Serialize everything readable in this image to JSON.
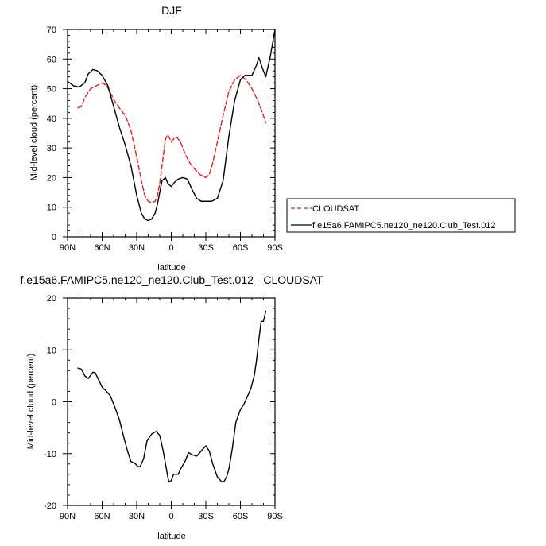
{
  "chart_data": [
    {
      "type": "line",
      "title": "DJF",
      "xlabel": "latitude",
      "ylabel": "Mid-level cloud (percent)",
      "xlim": [
        -90,
        90
      ],
      "ylim": [
        0,
        70
      ],
      "xticks": [
        -90,
        -60,
        -30,
        0,
        30,
        60,
        90
      ],
      "xtick_labels": [
        "90N",
        "60N",
        "30N",
        "0",
        "30S",
        "60S",
        "90S"
      ],
      "yticks": [
        0,
        10,
        20,
        30,
        40,
        50,
        60,
        70
      ],
      "ytick_labels": [
        "0",
        "10",
        "20",
        "30",
        "40",
        "50",
        "60",
        "70"
      ],
      "legend": {
        "placement": "right",
        "entries": [
          "CLOUDSAT",
          "f.e15a6.FAMIPC5.ne120_ne120.Club_Test.012"
        ]
      },
      "series": [
        {
          "name": "CLOUDSAT",
          "style": "dashed",
          "color": "#e02020",
          "x": [
            -81,
            -78,
            -75,
            -70,
            -65,
            -60,
            -56,
            -52,
            -48,
            -44,
            -40,
            -35,
            -30,
            -26,
            -23,
            -20,
            -17,
            -14,
            -12,
            -10,
            -8,
            -5,
            -3,
            0,
            3,
            5,
            8,
            12,
            16,
            20,
            25,
            30,
            33,
            36,
            40,
            45,
            50,
            55,
            60,
            65,
            70,
            75,
            79,
            82
          ],
          "y": [
            43.5,
            44,
            47,
            50,
            51,
            52,
            51,
            48,
            45,
            43,
            41,
            36,
            27,
            19,
            14,
            12,
            11.5,
            12,
            14,
            18,
            24,
            33,
            34.5,
            32,
            33.5,
            33.5,
            32,
            28,
            25,
            23,
            21,
            20,
            21,
            25,
            32,
            41,
            49,
            53,
            54.5,
            53,
            50,
            46,
            42,
            38.5
          ]
        },
        {
          "name": "f.e15a6.FAMIPC5.ne120_ne120.Club_Test.012",
          "style": "solid",
          "color": "#000000",
          "x": [
            -90,
            -85,
            -80,
            -75,
            -72,
            -68,
            -64,
            -60,
            -55,
            -50,
            -45,
            -40,
            -35,
            -30,
            -26,
            -23,
            -20,
            -17,
            -14,
            -12,
            -10,
            -8,
            -5,
            -3,
            0,
            3,
            6,
            10,
            14,
            18,
            22,
            26,
            30,
            35,
            40,
            45,
            50,
            55,
            60,
            64,
            67,
            70,
            74,
            76,
            79,
            82,
            86,
            90
          ],
          "y": [
            52.5,
            51,
            50.5,
            52,
            55,
            56.5,
            56,
            54.5,
            51,
            44,
            37,
            31,
            24,
            14,
            8,
            6,
            5.5,
            6,
            8,
            11,
            15,
            19,
            20,
            18,
            17,
            18.5,
            19.5,
            20,
            19.5,
            16,
            13,
            12,
            12,
            12,
            13,
            19,
            34,
            46,
            53,
            54.5,
            54.5,
            54.5,
            58,
            60.5,
            57,
            54,
            61,
            70
          ]
        }
      ]
    },
    {
      "type": "line",
      "title": "f.e15a6.FAMIPC5.ne120_ne120.Club_Test.012 - CLOUDSAT",
      "xlabel": "latitude",
      "ylabel": "Mid-level cloud (percent)",
      "xlim": [
        -90,
        90
      ],
      "ylim": [
        -20,
        20
      ],
      "xticks": [
        -90,
        -60,
        -30,
        0,
        30,
        60,
        90
      ],
      "xtick_labels": [
        "90N",
        "60N",
        "30N",
        "0",
        "30S",
        "60S",
        "90S"
      ],
      "yticks": [
        -20,
        -10,
        0,
        10,
        20
      ],
      "ytick_labels": [
        "-20",
        "-10",
        "0",
        "10",
        "20"
      ],
      "series": [
        {
          "name": "",
          "style": "solid",
          "color": "#000000",
          "x": [
            -81,
            -78,
            -75,
            -72,
            -68,
            -66,
            -63,
            -60,
            -57,
            -53,
            -49,
            -45,
            -41,
            -38,
            -35,
            -31,
            -29,
            -27,
            -24,
            -21,
            -17,
            -13,
            -10,
            -7,
            -5,
            -3,
            -2,
            0,
            2,
            4,
            6,
            8,
            12,
            15,
            18,
            22,
            26,
            30,
            33,
            36,
            40,
            44,
            46,
            48,
            50,
            53,
            56,
            60,
            63,
            66,
            69,
            72,
            74,
            76,
            78,
            80,
            82
          ],
          "y": [
            6.5,
            6.3,
            5,
            4.5,
            5.7,
            5.6,
            4.2,
            2.8,
            2.2,
            1.2,
            -1,
            -3.5,
            -7,
            -9.5,
            -11.5,
            -12,
            -12.5,
            -12.5,
            -11,
            -7.5,
            -6.2,
            -5.7,
            -6.5,
            -9.5,
            -12,
            -14.5,
            -15.5,
            -15.2,
            -14,
            -14,
            -14,
            -13,
            -11.5,
            -9.8,
            -10.2,
            -10.5,
            -9.5,
            -8.5,
            -9.5,
            -12,
            -14.5,
            -15.5,
            -15.3,
            -14.5,
            -13,
            -9,
            -4,
            -1.5,
            -0.5,
            1,
            2.5,
            5,
            8,
            12,
            15.5,
            15.5,
            17.5
          ]
        }
      ]
    }
  ]
}
